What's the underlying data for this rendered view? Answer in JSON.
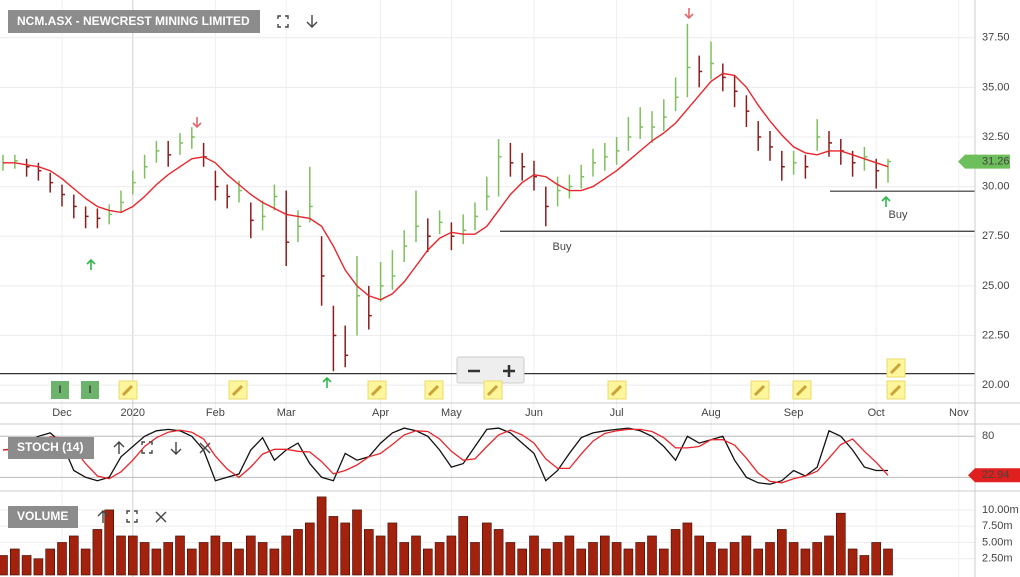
{
  "chart_data": [
    {
      "type": "ohlc",
      "title": "NCM.ASX - NEWCREST MINING LIMITED",
      "categories": [
        null,
        null,
        null,
        null,
        null,
        "Dec",
        null,
        null,
        null,
        null,
        null,
        "2020",
        null,
        null,
        null,
        null,
        null,
        null,
        "Feb",
        null,
        null,
        null,
        null,
        null,
        "Mar",
        null,
        null,
        null,
        null,
        null,
        null,
        null,
        "Apr",
        null,
        null,
        null,
        null,
        null,
        "May",
        null,
        null,
        null,
        null,
        null,
        null,
        "Jun",
        null,
        null,
        null,
        null,
        null,
        null,
        "Jul",
        null,
        null,
        null,
        null,
        null,
        null,
        null,
        "Aug",
        null,
        null,
        null,
        null,
        null,
        null,
        "Sep",
        null,
        null,
        null,
        null,
        null,
        null,
        "Oct",
        null,
        null,
        null,
        null,
        null,
        null,
        "Nov"
      ],
      "high": [
        31.6,
        31.6,
        31.4,
        31.2,
        30.7,
        30.1,
        29.6,
        29.0,
        28.9,
        29.1,
        29.8,
        30.8,
        31.6,
        32.3,
        32.3,
        32.7,
        33.0,
        32.2,
        30.8,
        30.1,
        30.3,
        29.2,
        29.3,
        30.1,
        29.8,
        28.8,
        31.0,
        27.5,
        24.0,
        23.0,
        26.5,
        25.0,
        26.2,
        26.8,
        27.8,
        29.8,
        28.4,
        28.8,
        28.2,
        28.6,
        29.2,
        30.5,
        32.4,
        32.2,
        31.7,
        31.3,
        30.0,
        30.5,
        30.6,
        31.1,
        31.9,
        32.2,
        32.5,
        33.5,
        34.0,
        33.8,
        34.4,
        35.5,
        38.2,
        36.6,
        37.3,
        36.2,
        35.6,
        34.6,
        33.3,
        32.8,
        31.8,
        31.8,
        31.6,
        33.4,
        32.8,
        32.4,
        31.8,
        32.0,
        31.4,
        31.4,
        null,
        null,
        null,
        null,
        null,
        null
      ],
      "low": [
        30.8,
        30.9,
        30.5,
        30.3,
        29.7,
        29.0,
        28.4,
        27.9,
        27.9,
        28.1,
        28.7,
        29.6,
        30.4,
        31.2,
        31.0,
        31.6,
        31.9,
        31.0,
        29.3,
        28.9,
        29.2,
        27.4,
        27.8,
        28.8,
        26.0,
        27.2,
        28.2,
        24.0,
        20.7,
        20.9,
        22.5,
        22.8,
        24.2,
        24.8,
        26.2,
        27.2,
        26.7,
        27.6,
        26.8,
        27.1,
        27.8,
        28.8,
        29.5,
        30.5,
        30.3,
        29.8,
        28.0,
        29.0,
        29.4,
        29.9,
        30.5,
        30.8,
        31.1,
        31.8,
        32.4,
        32.2,
        32.8,
        33.8,
        34.5,
        35.0,
        35.4,
        34.8,
        34.0,
        33.0,
        31.8,
        31.3,
        30.3,
        30.6,
        30.4,
        31.8,
        31.5,
        31.1,
        30.5,
        30.8,
        29.9,
        30.2,
        null,
        null,
        null,
        null,
        null,
        null
      ],
      "close": [
        31.2,
        31.3,
        31.0,
        30.8,
        30.2,
        29.6,
        29.0,
        28.5,
        28.4,
        28.6,
        29.2,
        30.2,
        31.0,
        31.8,
        31.6,
        32.2,
        32.5,
        31.5,
        30.0,
        29.5,
        29.8,
        28.3,
        28.5,
        29.5,
        27.2,
        28.0,
        29.0,
        25.5,
        22.5,
        21.5,
        24.5,
        23.5,
        25.0,
        25.5,
        27.0,
        28.0,
        27.5,
        28.2,
        27.5,
        27.8,
        28.5,
        29.5,
        31.5,
        31.2,
        31.0,
        30.5,
        29.0,
        29.8,
        30.0,
        30.5,
        31.2,
        31.5,
        31.8,
        32.5,
        33.0,
        33.0,
        33.5,
        34.5,
        36.0,
        35.8,
        36.2,
        35.5,
        34.8,
        33.8,
        32.5,
        32.0,
        31.0,
        31.2,
        31.0,
        32.5,
        32.2,
        31.8,
        31.2,
        31.5,
        30.8,
        31.26,
        null,
        null,
        null,
        null,
        null,
        null
      ],
      "up_color": "#7fbf5f",
      "down_color": "#8b1c1c",
      "series": [
        {
          "color": "#e8262b",
          "values": [
            31.2,
            31.2,
            31.1,
            31.0,
            30.8,
            30.4,
            29.9,
            29.4,
            29.0,
            28.8,
            28.7,
            29.0,
            29.5,
            30.1,
            30.6,
            31.0,
            31.4,
            31.5,
            31.2,
            30.6,
            30.1,
            29.6,
            29.2,
            28.9,
            28.6,
            28.5,
            28.4,
            28.0,
            27.0,
            25.8,
            25.0,
            24.5,
            24.3,
            24.6,
            25.2,
            26.0,
            26.8,
            27.4,
            27.7,
            27.6,
            27.6,
            28.0,
            28.8,
            29.6,
            30.2,
            30.6,
            30.5,
            30.1,
            29.8,
            29.8,
            30.0,
            30.4,
            30.8,
            31.3,
            31.8,
            32.3,
            32.7,
            33.2,
            33.9,
            34.6,
            35.3,
            35.7,
            35.6,
            35.0,
            34.1,
            33.3,
            32.6,
            32.0,
            31.7,
            31.6,
            31.8,
            31.8,
            31.6,
            31.4,
            31.2,
            31.0,
            null,
            null,
            null,
            null,
            null,
            null
          ]
        }
      ],
      "levels": [
        27.75,
        29.77,
        20.58
      ],
      "annotations": [
        "Buy",
        "Buy"
      ],
      "event_labels": [
        "I",
        "I"
      ],
      "ylim": [
        19.25,
        39.4
      ],
      "yticks": [
        {
          "value": 20,
          "label": "20.00"
        },
        {
          "value": 22.5,
          "label": "22.50"
        },
        {
          "value": 25,
          "label": "25.00"
        },
        {
          "value": 27.5,
          "label": "27.50"
        },
        {
          "value": 30,
          "label": "30.00"
        },
        {
          "value": 32.5,
          "label": "32.50"
        },
        {
          "value": 35,
          "label": "35.00"
        },
        {
          "value": 37.5,
          "label": "37.50"
        }
      ],
      "grid": true,
      "tag_color": "#6cbf5a"
    },
    {
      "type": "line",
      "title": "STOCH (14)",
      "series": [
        {
          "color": "#111111",
          "values": [
            60,
            62,
            72,
            80,
            85,
            70,
            30,
            20,
            15,
            20,
            50,
            65,
            80,
            88,
            90,
            88,
            80,
            60,
            15,
            20,
            25,
            60,
            78,
            45,
            60,
            70,
            40,
            20,
            15,
            55,
            45,
            50,
            70,
            85,
            92,
            88,
            80,
            60,
            35,
            40,
            65,
            90,
            92,
            85,
            70,
            55,
            15,
            30,
            55,
            78,
            85,
            88,
            90,
            92,
            88,
            80,
            65,
            45,
            80,
            70,
            75,
            80,
            45,
            20,
            12,
            10,
            15,
            30,
            22,
            35,
            88,
            80,
            60,
            35,
            30,
            30
          ]
        },
        {
          "color": "#e8262b",
          "values": [
            60,
            61,
            65,
            71,
            79,
            78,
            62,
            40,
            22,
            18,
            28,
            45,
            65,
            78,
            86,
            89,
            86,
            76,
            51,
            32,
            20,
            35,
            54,
            61,
            61,
            58,
            57,
            43,
            25,
            30,
            38,
            50,
            55,
            68,
            82,
            88,
            87,
            76,
            58,
            45,
            47,
            65,
            82,
            89,
            82,
            70,
            47,
            33,
            33,
            54,
            73,
            84,
            88,
            90,
            90,
            87,
            78,
            63,
            63,
            65,
            75,
            75,
            67,
            48,
            26,
            14,
            12,
            18,
            22,
            29,
            48,
            68,
            76,
            58,
            42,
            22.94
          ]
        }
      ],
      "levels": [
        20
      ],
      "ylim": [
        0,
        96.5
      ],
      "yticks": [
        80
      ]
    },
    {
      "type": "bar",
      "title": "VOLUME",
      "color": "#a3220e",
      "values": [
        3,
        4,
        3,
        2.5,
        4,
        5,
        6,
        4,
        7,
        10,
        6,
        6,
        5,
        4,
        5,
        6,
        4,
        5,
        6,
        5,
        4,
        6,
        5,
        4,
        6,
        7,
        8,
        12,
        9,
        8,
        10,
        7,
        6,
        8,
        5,
        6,
        4,
        5,
        6,
        9,
        5,
        8,
        7,
        5,
        4,
        6,
        4,
        5,
        6,
        4,
        5,
        6,
        5,
        4,
        5,
        6,
        4,
        7,
        8,
        6,
        5,
        4,
        5,
        6,
        4,
        5,
        7,
        5,
        4,
        5,
        6,
        9.5,
        4,
        3,
        5,
        4
      ],
      "ylim": [
        0,
        12.6
      ],
      "yticks": [
        {
          "value": 2.5,
          "label": "2.50m"
        },
        {
          "value": 5,
          "label": "5.00m"
        },
        {
          "value": 7.5,
          "label": "7.50m"
        },
        {
          "value": 10,
          "label": "10.00m"
        }
      ]
    }
  ]
}
